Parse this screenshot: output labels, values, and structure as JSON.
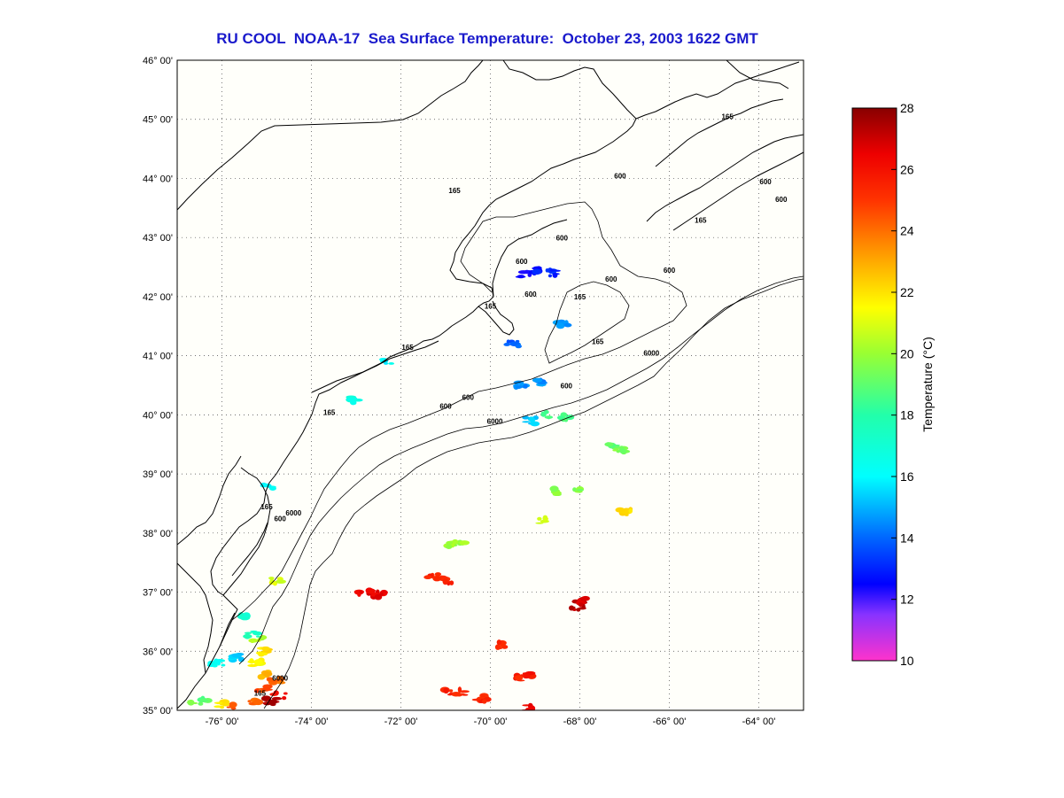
{
  "title": "RU COOL  NOAA-17  Sea Surface Temperature:  October 23, 2003 1622 GMT",
  "map": {
    "lon_range": [
      -77,
      -63
    ],
    "lat_range": [
      35,
      46
    ],
    "lat_ticks": [
      {
        "value": 46,
        "label": "46° 00'"
      },
      {
        "value": 45,
        "label": "45° 00'"
      },
      {
        "value": 44,
        "label": "44° 00'"
      },
      {
        "value": 43,
        "label": "43° 00'"
      },
      {
        "value": 42,
        "label": "42° 00'"
      },
      {
        "value": 41,
        "label": "41° 00'"
      },
      {
        "value": 40,
        "label": "40° 00'"
      },
      {
        "value": 39,
        "label": "39° 00'"
      },
      {
        "value": 38,
        "label": "38° 00'"
      },
      {
        "value": 37,
        "label": "37° 00'"
      },
      {
        "value": 36,
        "label": "36° 00'"
      },
      {
        "value": 35,
        "label": "35° 00'"
      }
    ],
    "lon_ticks": [
      {
        "value": -76,
        "label": "-76° 00'"
      },
      {
        "value": -74,
        "label": "-74° 00'"
      },
      {
        "value": -72,
        "label": "-72° 00'"
      },
      {
        "value": -70,
        "label": "-70° 00'"
      },
      {
        "value": -68,
        "label": "-68° 00'"
      },
      {
        "value": -66,
        "label": "-66° 00'"
      },
      {
        "value": -64,
        "label": "-64° 00'"
      }
    ],
    "grid": "dotted",
    "contour_labels": [
      {
        "text": "165",
        "lon": -75.0,
        "lat": 38.4
      },
      {
        "text": "600",
        "lon": -74.7,
        "lat": 38.2
      },
      {
        "text": "6000",
        "lon": -74.4,
        "lat": 38.3
      },
      {
        "text": "165",
        "lon": -73.6,
        "lat": 40.0
      },
      {
        "text": "600",
        "lon": -71.0,
        "lat": 40.1
      },
      {
        "text": "600",
        "lon": -70.5,
        "lat": 40.25
      },
      {
        "text": "6000",
        "lon": -69.9,
        "lat": 39.85
      },
      {
        "text": "600",
        "lon": -68.3,
        "lat": 40.45
      },
      {
        "text": "6000",
        "lon": -66.4,
        "lat": 41.0
      },
      {
        "text": "165",
        "lon": -71.85,
        "lat": 41.1
      },
      {
        "text": "165",
        "lon": -70.0,
        "lat": 41.8
      },
      {
        "text": "600",
        "lon": -69.1,
        "lat": 42.0
      },
      {
        "text": "600",
        "lon": -69.3,
        "lat": 42.55
      },
      {
        "text": "165",
        "lon": -68.0,
        "lat": 41.95
      },
      {
        "text": "600",
        "lon": -67.3,
        "lat": 42.25
      },
      {
        "text": "600",
        "lon": -66.0,
        "lat": 42.4
      },
      {
        "text": "165",
        "lon": -67.6,
        "lat": 41.2
      },
      {
        "text": "600",
        "lon": -68.4,
        "lat": 42.95
      },
      {
        "text": "600",
        "lon": -67.1,
        "lat": 44.0
      },
      {
        "text": "165",
        "lon": -70.8,
        "lat": 43.75
      },
      {
        "text": "165",
        "lon": -65.3,
        "lat": 43.25
      },
      {
        "text": "165",
        "lon": -64.7,
        "lat": 45.0
      },
      {
        "text": "600",
        "lon": -63.85,
        "lat": 43.9
      },
      {
        "text": "600",
        "lon": -63.5,
        "lat": 43.6
      },
      {
        "text": "6000",
        "lon": -74.7,
        "lat": 35.5
      },
      {
        "text": "165",
        "lon": -75.15,
        "lat": 35.25
      }
    ]
  },
  "colorbar": {
    "label": "Temperature (°C)",
    "min": 10,
    "max": 28,
    "ticks": [
      {
        "value": 28,
        "label": "28"
      },
      {
        "value": 26,
        "label": "26"
      },
      {
        "value": 24,
        "label": "24"
      },
      {
        "value": 22,
        "label": "22"
      },
      {
        "value": 20,
        "label": "20"
      },
      {
        "value": 18,
        "label": "18"
      },
      {
        "value": 16,
        "label": "16"
      },
      {
        "value": 14,
        "label": "14"
      },
      {
        "value": 12,
        "label": "12"
      },
      {
        "value": 10,
        "label": "10"
      }
    ],
    "stops": [
      {
        "value": 10,
        "color": "#ff33cc"
      },
      {
        "value": 11.5,
        "color": "#8833ff"
      },
      {
        "value": 12.5,
        "color": "#0000ff"
      },
      {
        "value": 14,
        "color": "#0066ff"
      },
      {
        "value": 16,
        "color": "#00ffff"
      },
      {
        "value": 18,
        "color": "#22ffaa"
      },
      {
        "value": 20,
        "color": "#99ff33"
      },
      {
        "value": 21.5,
        "color": "#ffff00"
      },
      {
        "value": 23,
        "color": "#ffaa00"
      },
      {
        "value": 25,
        "color": "#ff3300"
      },
      {
        "value": 26.5,
        "color": "#ee0000"
      },
      {
        "value": 28,
        "color": "#880000"
      }
    ]
  },
  "sst_patches": [
    {
      "lon": -69.2,
      "lat": 42.38,
      "temp": 12.5
    },
    {
      "lon": -68.9,
      "lat": 42.45,
      "temp": 12.8
    },
    {
      "lon": -68.6,
      "lat": 42.4,
      "temp": 13.0
    },
    {
      "lon": -69.5,
      "lat": 41.2,
      "temp": 14.0
    },
    {
      "lon": -69.35,
      "lat": 40.5,
      "temp": 14.5
    },
    {
      "lon": -68.9,
      "lat": 40.55,
      "temp": 14.5
    },
    {
      "lon": -68.4,
      "lat": 41.55,
      "temp": 14.8
    },
    {
      "lon": -69.1,
      "lat": 39.9,
      "temp": 15.5
    },
    {
      "lon": -68.7,
      "lat": 40.0,
      "temp": 18.5
    },
    {
      "lon": -68.3,
      "lat": 39.95,
      "temp": 18.8
    },
    {
      "lon": -67.1,
      "lat": 39.4,
      "temp": 19.5
    },
    {
      "lon": -67.3,
      "lat": 39.5,
      "temp": 19.0
    },
    {
      "lon": -68.6,
      "lat": 38.7,
      "temp": 19.8
    },
    {
      "lon": -68.0,
      "lat": 38.7,
      "temp": 19.5
    },
    {
      "lon": -67.0,
      "lat": 38.35,
      "temp": 22.0
    },
    {
      "lon": -68.8,
      "lat": 38.2,
      "temp": 21.0
    },
    {
      "lon": -70.7,
      "lat": 37.85,
      "temp": 20.0
    },
    {
      "lon": -70.9,
      "lat": 37.8,
      "temp": 20.0
    },
    {
      "lon": -71.0,
      "lat": 37.2,
      "temp": 25.5
    },
    {
      "lon": -71.3,
      "lat": 37.25,
      "temp": 25.5
    },
    {
      "lon": -72.5,
      "lat": 36.95,
      "temp": 26.5
    },
    {
      "lon": -72.8,
      "lat": 37.0,
      "temp": 26.5
    },
    {
      "lon": -68.0,
      "lat": 36.85,
      "temp": 27.0
    },
    {
      "lon": -68.05,
      "lat": 36.75,
      "temp": 27.2
    },
    {
      "lon": -69.8,
      "lat": 36.1,
      "temp": 25.5
    },
    {
      "lon": -69.15,
      "lat": 35.6,
      "temp": 25.8
    },
    {
      "lon": -69.4,
      "lat": 35.55,
      "temp": 25.5
    },
    {
      "lon": -70.2,
      "lat": 35.2,
      "temp": 25.5
    },
    {
      "lon": -70.6,
      "lat": 35.3,
      "temp": 25.5
    },
    {
      "lon": -70.9,
      "lat": 35.3,
      "temp": 25.5
    },
    {
      "lon": -69.1,
      "lat": 35.05,
      "temp": 26.5
    },
    {
      "lon": -73.0,
      "lat": 40.25,
      "temp": 16.5
    },
    {
      "lon": -72.35,
      "lat": 40.9,
      "temp": 16.0
    },
    {
      "lon": -75.0,
      "lat": 38.8,
      "temp": 16.0
    },
    {
      "lon": -74.8,
      "lat": 37.2,
      "temp": 21.0
    },
    {
      "lon": -75.2,
      "lat": 36.2,
      "temp": 20.5
    },
    {
      "lon": -75.0,
      "lat": 36.0,
      "temp": 22.0
    },
    {
      "lon": -75.2,
      "lat": 35.8,
      "temp": 21.5
    },
    {
      "lon": -75.0,
      "lat": 35.6,
      "temp": 23.0
    },
    {
      "lon": -74.8,
      "lat": 35.5,
      "temp": 24.0
    },
    {
      "lon": -75.1,
      "lat": 35.35,
      "temp": 24.5
    },
    {
      "lon": -74.7,
      "lat": 35.25,
      "temp": 26.0
    },
    {
      "lon": -75.3,
      "lat": 35.15,
      "temp": 24.0
    },
    {
      "lon": -75.8,
      "lat": 35.05,
      "temp": 24.5
    },
    {
      "lon": -76.0,
      "lat": 35.1,
      "temp": 22.0
    },
    {
      "lon": -76.4,
      "lat": 35.2,
      "temp": 19.0
    },
    {
      "lon": -76.6,
      "lat": 35.1,
      "temp": 19.5
    },
    {
      "lon": -76.1,
      "lat": 35.8,
      "temp": 16.5
    },
    {
      "lon": -75.7,
      "lat": 35.9,
      "temp": 15.5
    },
    {
      "lon": -75.5,
      "lat": 36.6,
      "temp": 17.0
    },
    {
      "lon": -75.3,
      "lat": 36.3,
      "temp": 17.5
    },
    {
      "lon": -74.9,
      "lat": 35.15,
      "temp": 27.5
    }
  ]
}
